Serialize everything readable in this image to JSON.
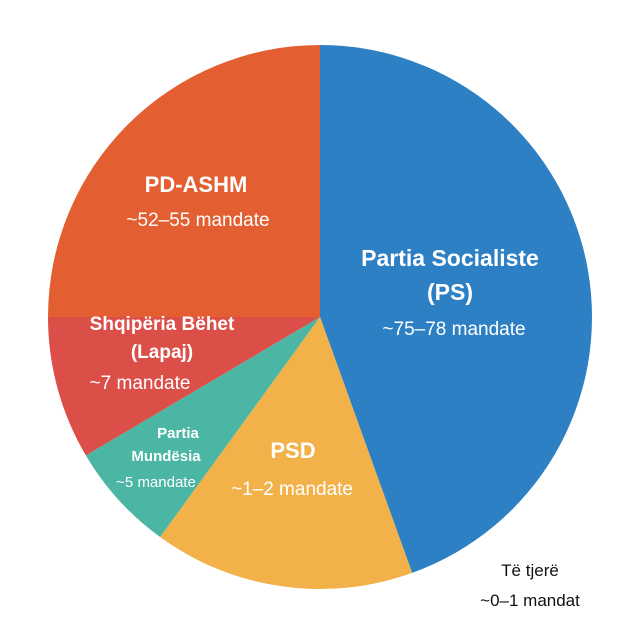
{
  "chart_data": {
    "type": "pie",
    "title": "",
    "slices": [
      {
        "name_lines": [
          "Partia Socialiste",
          "(PS)"
        ],
        "value_text": "~75–78 mandate",
        "value": 44.5,
        "color": "#2E80C4"
      },
      {
        "name_lines": [
          "PSD"
        ],
        "value_text": "~1–2 mandate",
        "value": 15.5,
        "color": "#F3B249"
      },
      {
        "name_lines": [
          "Partia",
          "Mundësia"
        ],
        "value_text": "~5 mandate",
        "value": 6.5,
        "color": "#4BB6A4"
      },
      {
        "name_lines": [
          "Shqipëria Bëhet",
          "(Lapaj)"
        ],
        "value_text": "~7 mandate",
        "value": 8.5,
        "color": "#DC4F49"
      },
      {
        "name_lines": [
          "PD-ASHM"
        ],
        "value_text": "~52–55 mandate",
        "value": 25.0,
        "color": "#E35F31"
      }
    ],
    "outside_note": [
      "Të tjerë",
      "~0–1 mandat"
    ]
  }
}
